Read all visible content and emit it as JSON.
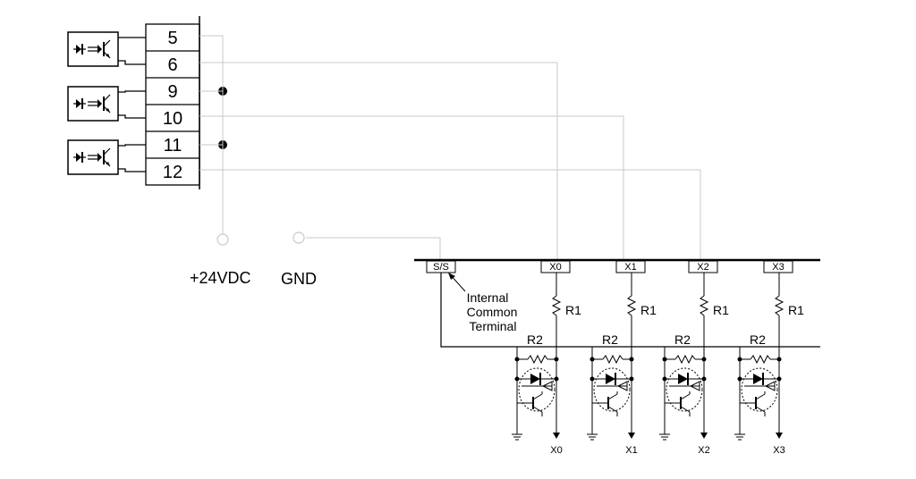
{
  "terminals": [
    "5",
    "6",
    "9",
    "10",
    "11",
    "12"
  ],
  "supply": {
    "pos_label": "+24VDC",
    "gnd_label": "GND"
  },
  "bus": {
    "common_label": "S/S",
    "common_note": [
      "Internal",
      "Common",
      "Terminal"
    ],
    "inputs": [
      "X0",
      "X1",
      "X2",
      "X3"
    ],
    "r1_label": "R1",
    "r2_label": "R2"
  },
  "colors": {
    "line": "#000000",
    "wire": "#c8c8c8"
  }
}
